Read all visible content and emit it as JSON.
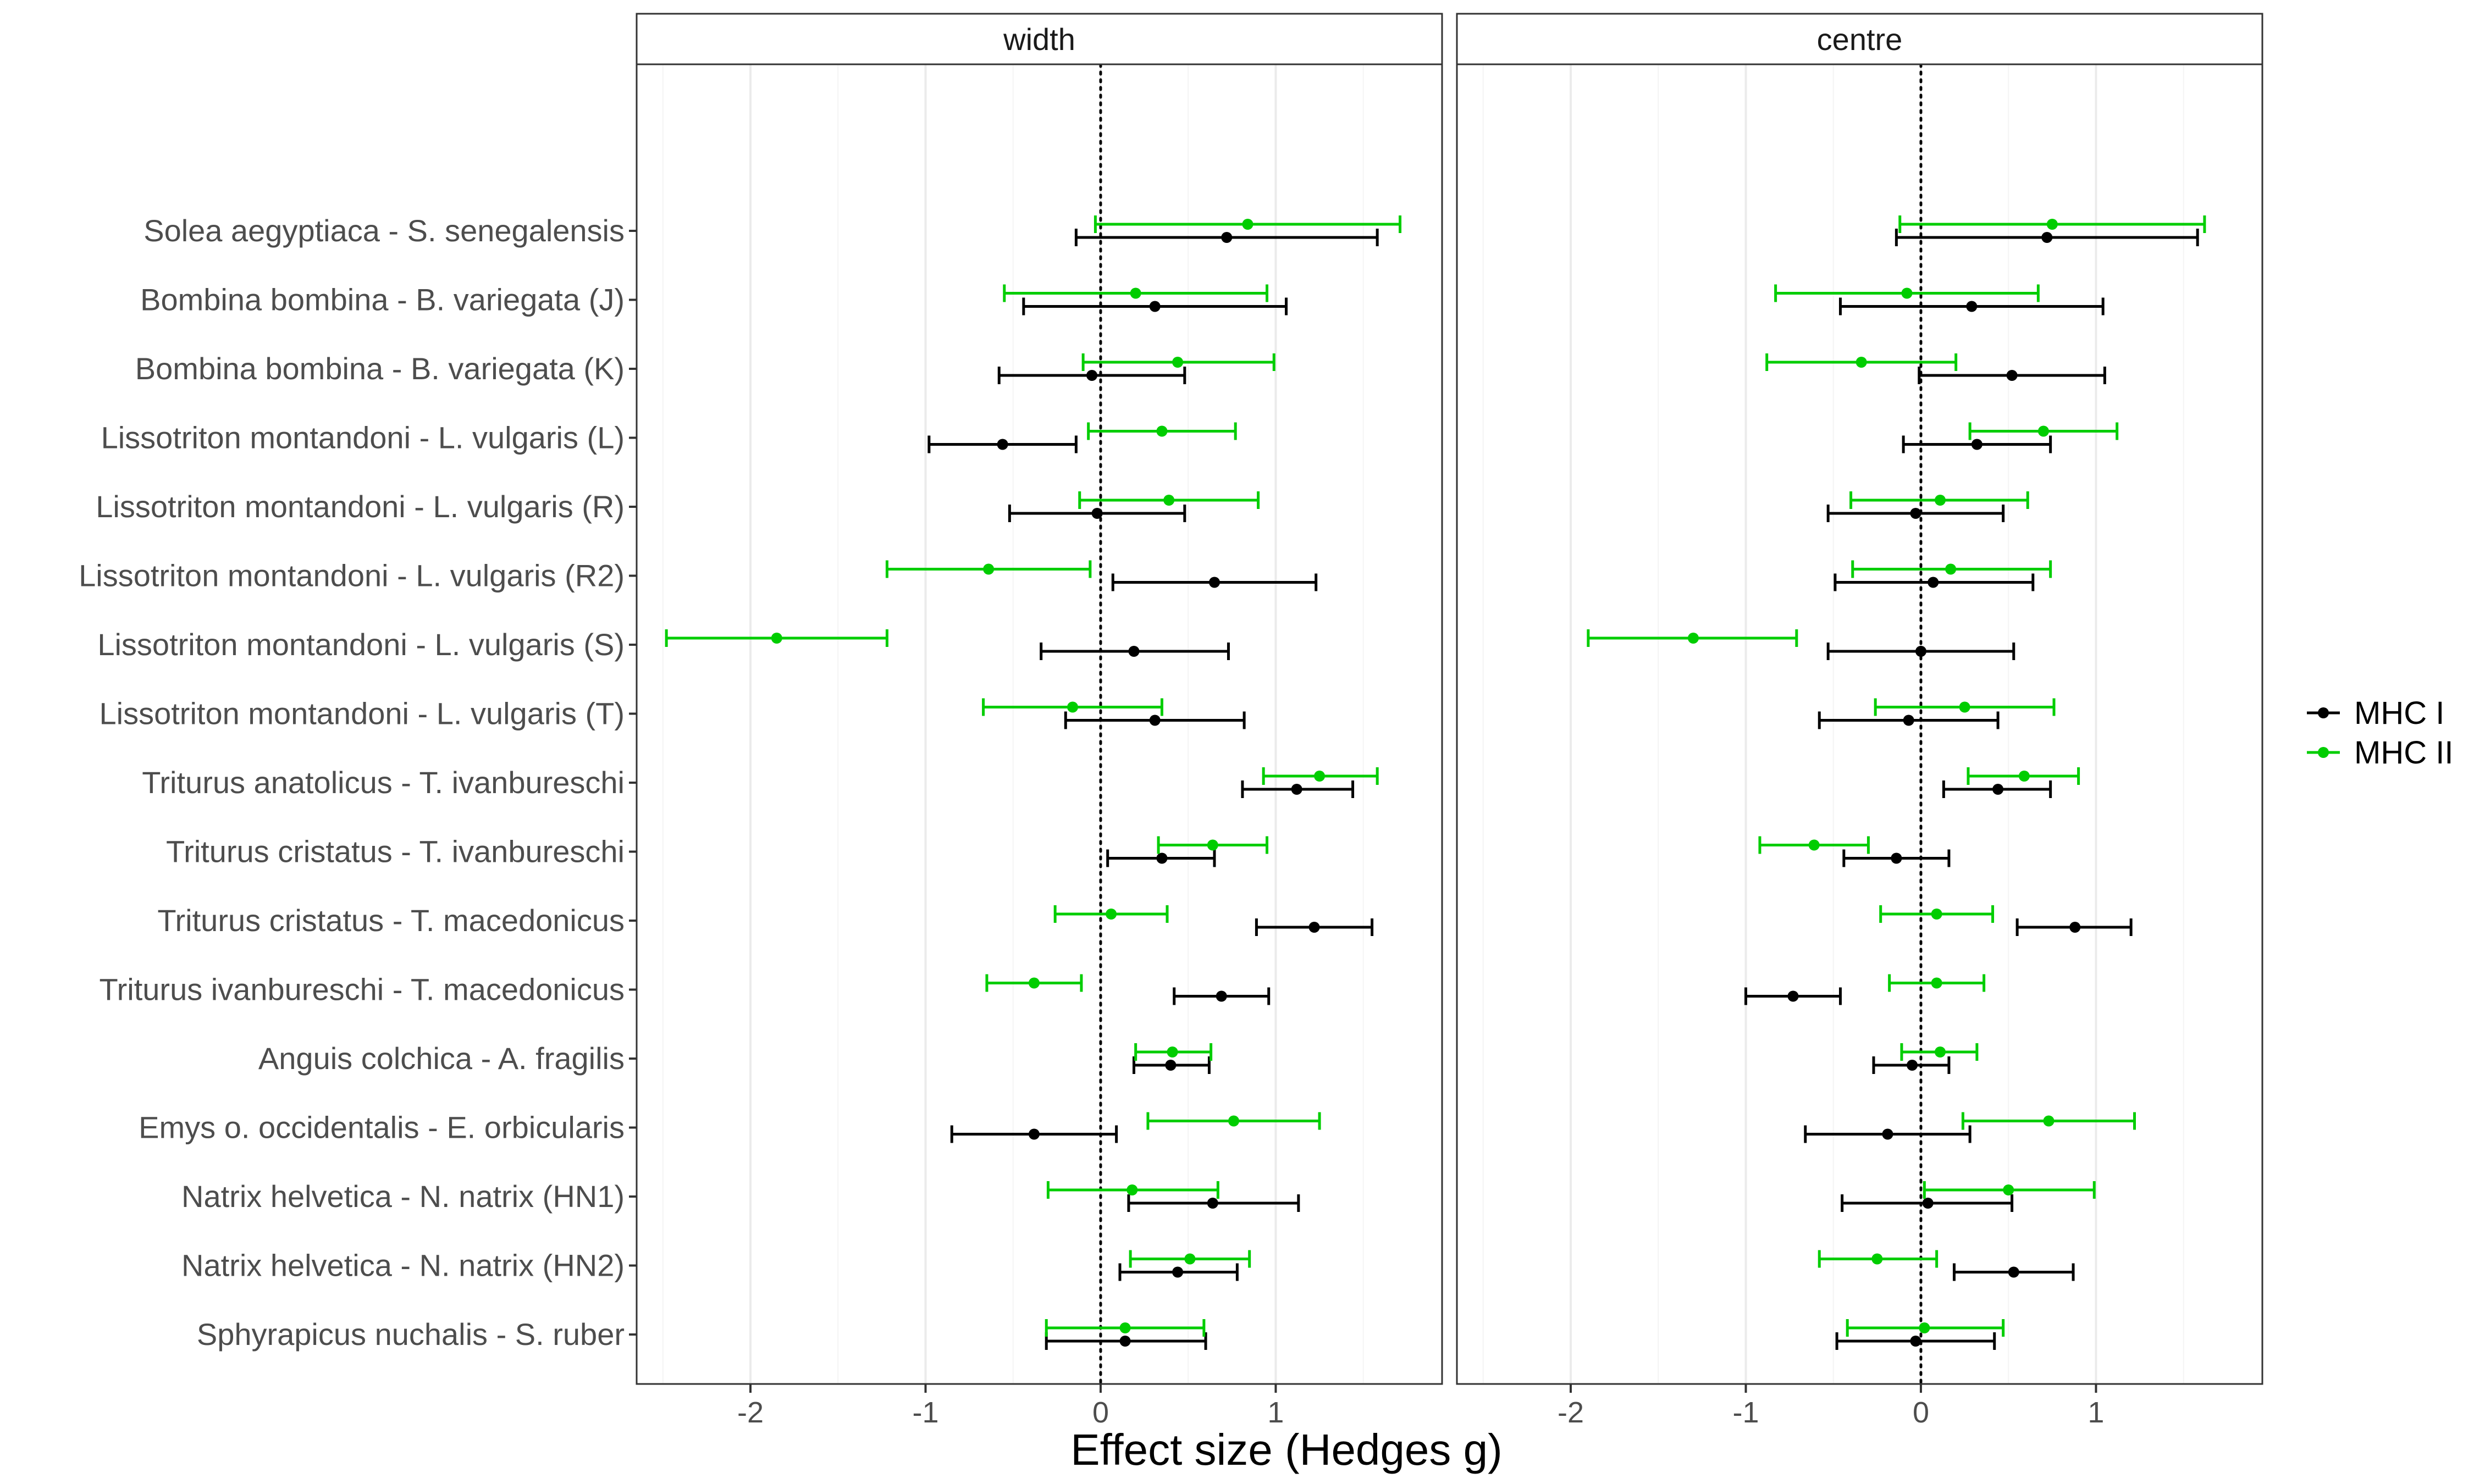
{
  "chart_data": {
    "type": "forest",
    "xlabel": "Effect size (Hedges g)",
    "xlim": [
      -2.65,
      1.95
    ],
    "x_ticks": [
      -2,
      -1,
      0,
      1
    ],
    "x_tick_labels": [
      "-2",
      "-1",
      "0",
      "1"
    ],
    "reference_line": 0,
    "grid": true,
    "legend_position": "right",
    "legend": [
      {
        "label": "MHC I",
        "color": "#000000"
      },
      {
        "label": "MHC II",
        "color": "#00cd00"
      }
    ],
    "categories": [
      "Solea aegyptiaca - S. senegalensis",
      "Bombina bombina - B. variegata (J)",
      "Bombina bombina - B. variegata (K)",
      "Lissotriton montandoni - L. vulgaris (L)",
      "Lissotriton montandoni - L. vulgaris (R)",
      "Lissotriton montandoni - L. vulgaris (R2)",
      "Lissotriton montandoni - L. vulgaris (S)",
      "Lissotriton montandoni - L. vulgaris (T)",
      "Triturus anatolicus - T. ivanbureschi",
      "Triturus cristatus - T. ivanbureschi",
      "Triturus cristatus - T. macedonicus",
      "Triturus ivanbureschi - T. macedonicus",
      "Anguis colchica - A. fragilis",
      "Emys o. occidentalis - E. orbicularis",
      "Natrix helvetica - N. natrix (HN1)",
      "Natrix helvetica - N. natrix (HN2)",
      "Sphyrapicus nuchalis - S. ruber"
    ],
    "panels": [
      {
        "strip_label": "width",
        "series": [
          {
            "name": "MHC I",
            "points": [
              {
                "est": 0.72,
                "lo": -0.14,
                "hi": 1.58
              },
              {
                "est": 0.31,
                "lo": -0.44,
                "hi": 1.06
              },
              {
                "est": -0.05,
                "lo": -0.58,
                "hi": 0.48
              },
              {
                "est": -0.56,
                "lo": -0.98,
                "hi": -0.14
              },
              {
                "est": -0.02,
                "lo": -0.52,
                "hi": 0.48
              },
              {
                "est": 0.65,
                "lo": 0.07,
                "hi": 1.23
              },
              {
                "est": 0.19,
                "lo": -0.34,
                "hi": 0.73
              },
              {
                "est": 0.31,
                "lo": -0.2,
                "hi": 0.82
              },
              {
                "est": 1.12,
                "lo": 0.81,
                "hi": 1.44
              },
              {
                "est": 0.35,
                "lo": 0.04,
                "hi": 0.65
              },
              {
                "est": 1.22,
                "lo": 0.89,
                "hi": 1.55
              },
              {
                "est": 0.69,
                "lo": 0.42,
                "hi": 0.96
              },
              {
                "est": 0.4,
                "lo": 0.19,
                "hi": 0.62
              },
              {
                "est": -0.38,
                "lo": -0.85,
                "hi": 0.09
              },
              {
                "est": 0.64,
                "lo": 0.16,
                "hi": 1.13
              },
              {
                "est": 0.44,
                "lo": 0.11,
                "hi": 0.78
              },
              {
                "est": 0.14,
                "lo": -0.31,
                "hi": 0.6
              }
            ]
          },
          {
            "name": "MHC II",
            "points": [
              {
                "est": 0.84,
                "lo": -0.03,
                "hi": 1.71
              },
              {
                "est": 0.2,
                "lo": -0.55,
                "hi": 0.95
              },
              {
                "est": 0.44,
                "lo": -0.1,
                "hi": 0.99
              },
              {
                "est": 0.35,
                "lo": -0.07,
                "hi": 0.77
              },
              {
                "est": 0.39,
                "lo": -0.12,
                "hi": 0.9
              },
              {
                "est": -0.64,
                "lo": -1.22,
                "hi": -0.06
              },
              {
                "est": -1.85,
                "lo": -2.48,
                "hi": -1.22
              },
              {
                "est": -0.16,
                "lo": -0.67,
                "hi": 0.35
              },
              {
                "est": 1.25,
                "lo": 0.93,
                "hi": 1.58
              },
              {
                "est": 0.64,
                "lo": 0.33,
                "hi": 0.95
              },
              {
                "est": 0.06,
                "lo": -0.26,
                "hi": 0.38
              },
              {
                "est": -0.38,
                "lo": -0.65,
                "hi": -0.11
              },
              {
                "est": 0.41,
                "lo": 0.2,
                "hi": 0.63
              },
              {
                "est": 0.76,
                "lo": 0.27,
                "hi": 1.25
              },
              {
                "est": 0.18,
                "lo": -0.3,
                "hi": 0.67
              },
              {
                "est": 0.51,
                "lo": 0.17,
                "hi": 0.85
              },
              {
                "est": 0.14,
                "lo": -0.31,
                "hi": 0.59
              }
            ]
          }
        ]
      },
      {
        "strip_label": "centre",
        "series": [
          {
            "name": "MHC I",
            "points": [
              {
                "est": 0.72,
                "lo": -0.14,
                "hi": 1.58
              },
              {
                "est": 0.29,
                "lo": -0.46,
                "hi": 1.04
              },
              {
                "est": 0.52,
                "lo": -0.01,
                "hi": 1.05
              },
              {
                "est": 0.32,
                "lo": -0.1,
                "hi": 0.74
              },
              {
                "est": -0.03,
                "lo": -0.53,
                "hi": 0.47
              },
              {
                "est": 0.07,
                "lo": -0.49,
                "hi": 0.64
              },
              {
                "est": 0.0,
                "lo": -0.53,
                "hi": 0.53
              },
              {
                "est": -0.07,
                "lo": -0.58,
                "hi": 0.44
              },
              {
                "est": 0.44,
                "lo": 0.13,
                "hi": 0.74
              },
              {
                "est": -0.14,
                "lo": -0.44,
                "hi": 0.16
              },
              {
                "est": 0.88,
                "lo": 0.55,
                "hi": 1.2
              },
              {
                "est": -0.73,
                "lo": -1.0,
                "hi": -0.46
              },
              {
                "est": -0.05,
                "lo": -0.27,
                "hi": 0.16
              },
              {
                "est": -0.19,
                "lo": -0.66,
                "hi": 0.28
              },
              {
                "est": 0.04,
                "lo": -0.45,
                "hi": 0.52
              },
              {
                "est": 0.53,
                "lo": 0.19,
                "hi": 0.87
              },
              {
                "est": -0.03,
                "lo": -0.48,
                "hi": 0.42
              }
            ]
          },
          {
            "name": "MHC II",
            "points": [
              {
                "est": 0.75,
                "lo": -0.12,
                "hi": 1.62
              },
              {
                "est": -0.08,
                "lo": -0.83,
                "hi": 0.67
              },
              {
                "est": -0.34,
                "lo": -0.88,
                "hi": 0.2
              },
              {
                "est": 0.7,
                "lo": 0.28,
                "hi": 1.12
              },
              {
                "est": 0.11,
                "lo": -0.4,
                "hi": 0.61
              },
              {
                "est": 0.17,
                "lo": -0.39,
                "hi": 0.74
              },
              {
                "est": -1.3,
                "lo": -1.9,
                "hi": -0.71
              },
              {
                "est": 0.25,
                "lo": -0.26,
                "hi": 0.76
              },
              {
                "est": 0.59,
                "lo": 0.27,
                "hi": 0.9
              },
              {
                "est": -0.61,
                "lo": -0.92,
                "hi": -0.3
              },
              {
                "est": 0.09,
                "lo": -0.23,
                "hi": 0.41
              },
              {
                "est": 0.09,
                "lo": -0.18,
                "hi": 0.36
              },
              {
                "est": 0.11,
                "lo": -0.11,
                "hi": 0.32
              },
              {
                "est": 0.73,
                "lo": 0.24,
                "hi": 1.22
              },
              {
                "est": 0.5,
                "lo": 0.02,
                "hi": 0.99
              },
              {
                "est": -0.25,
                "lo": -0.58,
                "hi": 0.09
              },
              {
                "est": 0.02,
                "lo": -0.42,
                "hi": 0.47
              }
            ]
          }
        ]
      }
    ]
  }
}
